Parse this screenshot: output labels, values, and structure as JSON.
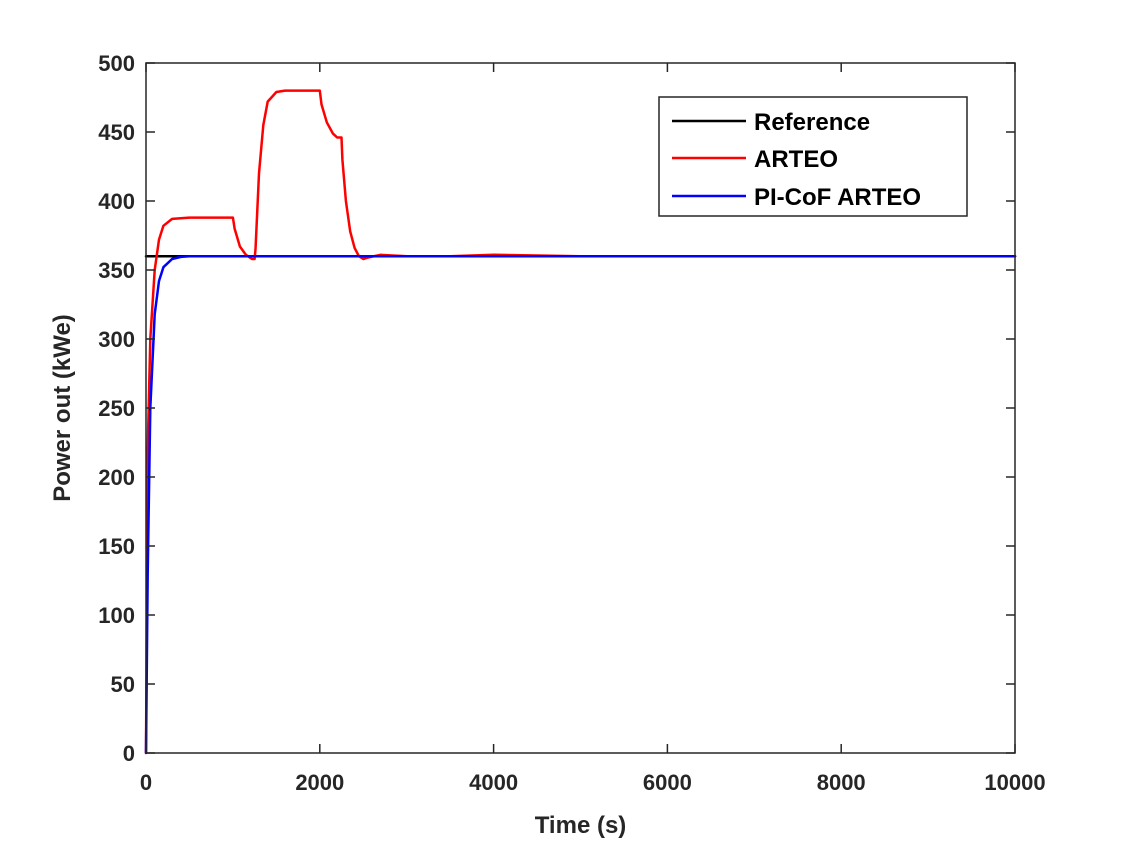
{
  "chart_data": {
    "type": "line",
    "title": "",
    "xlabel": "Time (s)",
    "ylabel": "Power out (kWe)",
    "xlim": [
      0,
      10000
    ],
    "ylim": [
      0,
      500
    ],
    "xticks": [
      0,
      2000,
      4000,
      6000,
      8000,
      10000
    ],
    "xtick_labels": [
      "0",
      "2000",
      "4000",
      "6000",
      "8000",
      "10000"
    ],
    "yticks": [
      0,
      50,
      100,
      150,
      200,
      250,
      300,
      350,
      400,
      450,
      500
    ],
    "ytick_labels": [
      "0",
      "50",
      "100",
      "150",
      "200",
      "250",
      "300",
      "350",
      "400",
      "450",
      "500"
    ],
    "grid": false,
    "legend_position": "top-right",
    "series": [
      {
        "name": "Reference",
        "color": "#000000",
        "x": [
          0,
          10000
        ],
        "y": [
          360,
          360
        ]
      },
      {
        "name": "ARTEO",
        "color": "#ff0000",
        "x": [
          0,
          20,
          50,
          100,
          150,
          200,
          300,
          500,
          800,
          1000,
          1020,
          1080,
          1150,
          1220,
          1250,
          1260,
          1300,
          1350,
          1400,
          1500,
          1600,
          1800,
          2000,
          2020,
          2080,
          2150,
          2200,
          2250,
          2260,
          2300,
          2350,
          2400,
          2450,
          2500,
          2550,
          2700,
          3000,
          3500,
          4000,
          5000,
          6000,
          7000,
          8000,
          9000,
          10000
        ],
        "y": [
          0,
          220,
          300,
          350,
          372,
          382,
          387,
          388,
          388,
          388,
          380,
          367,
          361,
          358,
          358,
          365,
          420,
          455,
          472,
          479,
          480,
          480,
          480,
          470,
          457,
          449,
          446,
          446,
          430,
          400,
          378,
          366,
          360,
          358,
          359,
          361,
          360,
          360,
          361,
          360,
          360,
          360,
          360,
          360,
          360
        ]
      },
      {
        "name": "PI-CoF ARTEO",
        "color": "#0000ff",
        "x": [
          0,
          20,
          50,
          100,
          150,
          200,
          300,
          400,
          500,
          800,
          1000,
          2000,
          3000,
          4000,
          5000,
          6000,
          7000,
          8000,
          9000,
          10000
        ],
        "y": [
          0,
          130,
          250,
          318,
          342,
          352,
          358,
          359.5,
          360,
          360,
          360,
          360,
          360,
          360,
          360,
          360,
          360,
          360,
          360,
          360
        ]
      }
    ]
  }
}
